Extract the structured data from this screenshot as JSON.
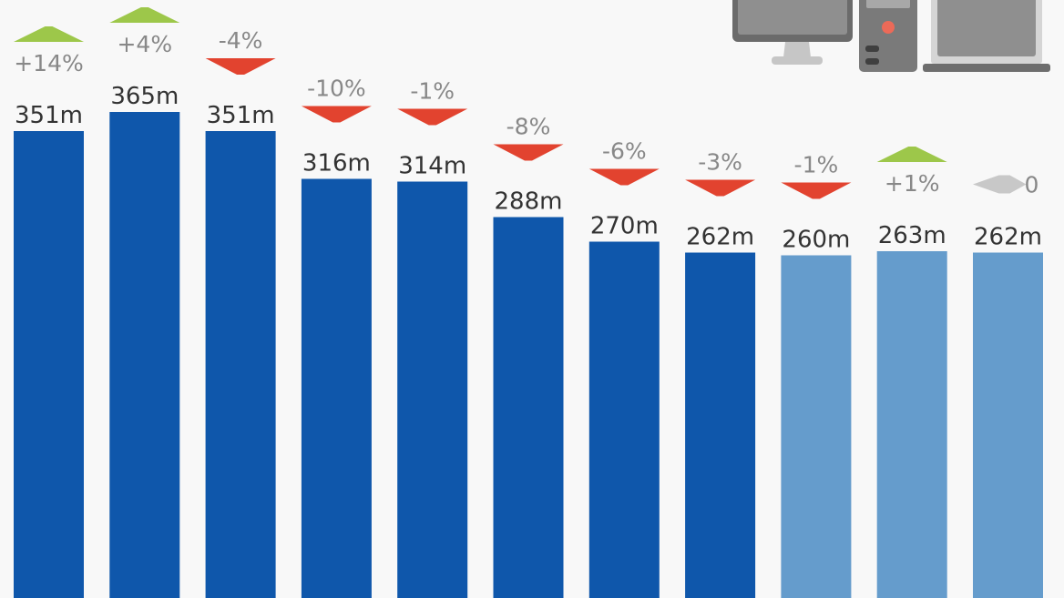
{
  "chart_data": {
    "type": "bar",
    "title": "",
    "xlabel": "",
    "ylabel": "",
    "ylim": [
      0,
      447
    ],
    "grid": false,
    "legend": "none",
    "values": [
      351,
      365,
      351,
      316,
      314,
      288,
      270,
      262,
      260,
      263,
      262
    ],
    "value_labels": [
      "351m",
      "365m",
      "351m",
      "316m",
      "314m",
      "288m",
      "270m",
      "262m",
      "260m",
      "263m",
      "262m"
    ],
    "change_labels": [
      "+14%",
      "+4%",
      "-4%",
      "-10%",
      "-1%",
      "-8%",
      "-6%",
      "-3%",
      "-1%",
      "+1%",
      "0"
    ],
    "change_direction": [
      "up",
      "up",
      "down",
      "down",
      "down",
      "down",
      "down",
      "down",
      "down",
      "up",
      "flat"
    ],
    "forecast": [
      false,
      false,
      false,
      false,
      false,
      false,
      false,
      false,
      true,
      true,
      true
    ]
  },
  "colors": {
    "actual_bar": "#0f57ab",
    "forecast_bar": "#659ccc",
    "up": "#9dc74a",
    "down": "#e2432f",
    "flat": "#c8c8c8",
    "value_text": "#333333",
    "change_text": "#888888",
    "background": "#f8f8f8"
  },
  "icons": [
    "desktop-monitor-icon",
    "pc-tower-icon",
    "laptop-icon"
  ]
}
